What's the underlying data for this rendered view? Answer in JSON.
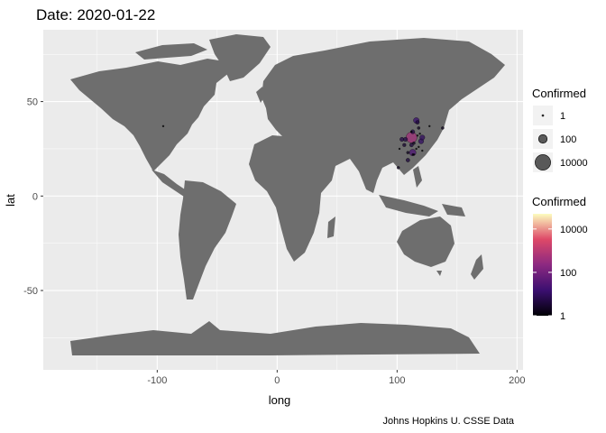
{
  "title": "Date: 2020-01-22",
  "caption": "Johns Hopkins U. CSSE Data",
  "colors": {
    "panel_bg": "#ebebeb",
    "grid": "#ffffff",
    "land": "#6e6e6e",
    "point_outline": "#000000",
    "gradient_low": "#000004",
    "gradient_mid": "#b73779",
    "gradient_high": "#fcfdbf"
  },
  "chart_data": {
    "type": "scatter",
    "subtype": "geographic bubble map (world)",
    "title": "Date: 2020-01-22",
    "xlabel": "long",
    "ylabel": "lat",
    "xlim": [
      -195,
      205
    ],
    "ylim": [
      -92,
      88
    ],
    "x_ticks": [
      -100,
      0,
      100,
      200
    ],
    "y_ticks": [
      -50,
      0,
      50
    ],
    "x_tick_labels": [
      "-100",
      "0",
      "100",
      "200"
    ],
    "y_tick_labels": [
      "-50",
      "0",
      "50"
    ],
    "grid": true,
    "legend_placement": "right",
    "size_legend": {
      "title": "Confirmed",
      "entries": [
        {
          "label": "1",
          "value": 1
        },
        {
          "label": "100",
          "value": 100
        },
        {
          "label": "10000",
          "value": 10000
        }
      ]
    },
    "color_legend": {
      "title": "Confirmed",
      "scale": "log",
      "labels": [
        "10000",
        "100",
        "1"
      ],
      "values": [
        10000,
        100,
        1
      ]
    },
    "points": [
      {
        "x": -95,
        "y": 37,
        "value": 1
      },
      {
        "x": 112,
        "y": 31,
        "value": 444
      },
      {
        "x": 113,
        "y": 23,
        "value": 26
      },
      {
        "x": 120,
        "y": 29,
        "value": 10
      },
      {
        "x": 121,
        "y": 31,
        "value": 9
      },
      {
        "x": 116,
        "y": 40,
        "value": 14
      },
      {
        "x": 117,
        "y": 39,
        "value": 4
      },
      {
        "x": 104,
        "y": 30,
        "value": 5
      },
      {
        "x": 107,
        "y": 30,
        "value": 5
      },
      {
        "x": 113,
        "y": 34,
        "value": 5
      },
      {
        "x": 114,
        "y": 28,
        "value": 2
      },
      {
        "x": 112,
        "y": 27,
        "value": 4
      },
      {
        "x": 117,
        "y": 32,
        "value": 1
      },
      {
        "x": 119,
        "y": 33,
        "value": 1
      },
      {
        "x": 118,
        "y": 26,
        "value": 1
      },
      {
        "x": 118,
        "y": 36,
        "value": 2
      },
      {
        "x": 109,
        "y": 23,
        "value": 2
      },
      {
        "x": 109,
        "y": 19,
        "value": 4
      },
      {
        "x": 102,
        "y": 25,
        "value": 1
      },
      {
        "x": 106,
        "y": 27,
        "value": 3
      },
      {
        "x": 114,
        "y": 22,
        "value": 1
      },
      {
        "x": 113,
        "y": 22,
        "value": 1
      },
      {
        "x": 101,
        "y": 15,
        "value": 2
      },
      {
        "x": 127,
        "y": 37,
        "value": 1
      },
      {
        "x": 138,
        "y": 36,
        "value": 2
      },
      {
        "x": 121,
        "y": 24,
        "value": 1
      },
      {
        "x": 116,
        "y": 25,
        "value": 1
      },
      {
        "x": 112,
        "y": 34,
        "value": 1
      }
    ]
  }
}
